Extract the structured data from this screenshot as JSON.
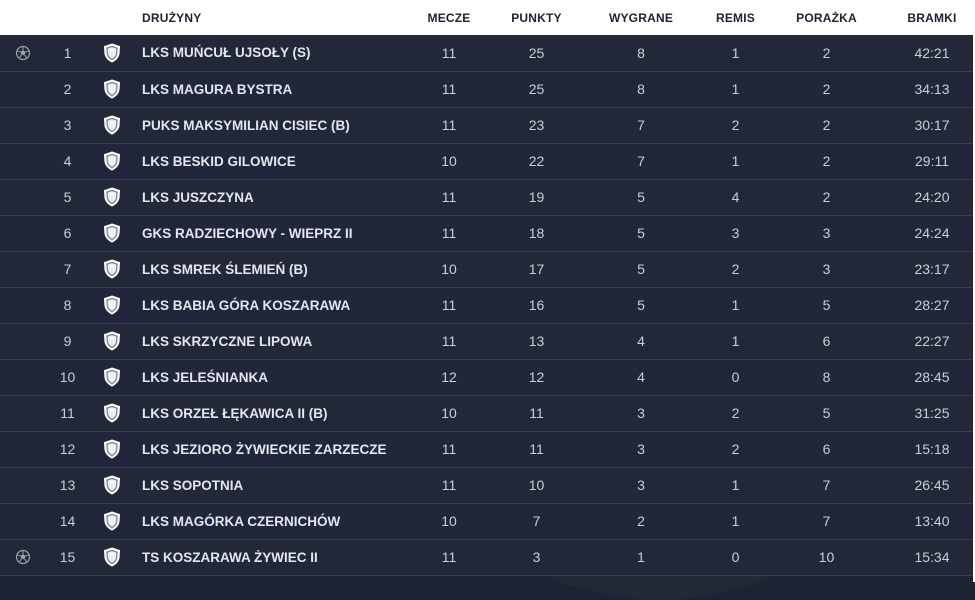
{
  "header": {
    "team": "Drużyny",
    "matches": "Mecze",
    "points": "Punkty",
    "wins": "Wygrane",
    "draws": "Remis",
    "losses": "Porażka",
    "goals": "Bramki"
  },
  "rows": [
    {
      "pos": "1",
      "ball": true,
      "team": "LKS MUŃCUŁ UJSOŁY (S)",
      "matches": "11",
      "points": "25",
      "wins": "8",
      "draws": "1",
      "losses": "2",
      "goals": "42:21"
    },
    {
      "pos": "2",
      "ball": false,
      "team": "LKS MAGURA BYSTRA",
      "matches": "11",
      "points": "25",
      "wins": "8",
      "draws": "1",
      "losses": "2",
      "goals": "34:13"
    },
    {
      "pos": "3",
      "ball": false,
      "team": "PUKS MAKSYMILIAN CISIEC (B)",
      "matches": "11",
      "points": "23",
      "wins": "7",
      "draws": "2",
      "losses": "2",
      "goals": "30:17"
    },
    {
      "pos": "4",
      "ball": false,
      "team": "LKS BESKID GILOWICE",
      "matches": "10",
      "points": "22",
      "wins": "7",
      "draws": "1",
      "losses": "2",
      "goals": "29:11"
    },
    {
      "pos": "5",
      "ball": false,
      "team": "LKS JUSZCZYNA",
      "matches": "11",
      "points": "19",
      "wins": "5",
      "draws": "4",
      "losses": "2",
      "goals": "24:20"
    },
    {
      "pos": "6",
      "ball": false,
      "team": "GKS RADZIECHOWY - WIEPRZ II",
      "matches": "11",
      "points": "18",
      "wins": "5",
      "draws": "3",
      "losses": "3",
      "goals": "24:24"
    },
    {
      "pos": "7",
      "ball": false,
      "team": "LKS SMREK ŚLEMIEŃ (B)",
      "matches": "10",
      "points": "17",
      "wins": "5",
      "draws": "2",
      "losses": "3",
      "goals": "23:17"
    },
    {
      "pos": "8",
      "ball": false,
      "team": "LKS BABIA GÓRA KOSZARAWA",
      "matches": "11",
      "points": "16",
      "wins": "5",
      "draws": "1",
      "losses": "5",
      "goals": "28:27"
    },
    {
      "pos": "9",
      "ball": false,
      "team": "LKS SKRZYCZNE LIPOWA",
      "matches": "11",
      "points": "13",
      "wins": "4",
      "draws": "1",
      "losses": "6",
      "goals": "22:27"
    },
    {
      "pos": "10",
      "ball": false,
      "team": "LKS JELEŚNIANKA",
      "matches": "12",
      "points": "12",
      "wins": "4",
      "draws": "0",
      "losses": "8",
      "goals": "28:45"
    },
    {
      "pos": "11",
      "ball": false,
      "team": "LKS ORZEŁ ŁĘKAWICA II (B)",
      "matches": "10",
      "points": "11",
      "wins": "3",
      "draws": "2",
      "losses": "5",
      "goals": "31:25"
    },
    {
      "pos": "12",
      "ball": false,
      "team": "LKS JEZIORO ŻYWIECKIE ZARZECZE",
      "matches": "11",
      "points": "11",
      "wins": "3",
      "draws": "2",
      "losses": "6",
      "goals": "15:18"
    },
    {
      "pos": "13",
      "ball": false,
      "team": "LKS SOPOTNIA",
      "matches": "11",
      "points": "10",
      "wins": "3",
      "draws": "1",
      "losses": "7",
      "goals": "26:45"
    },
    {
      "pos": "14",
      "ball": false,
      "team": "LKS MAGÓRKA CZERNICHÓW",
      "matches": "10",
      "points": "7",
      "wins": "2",
      "draws": "1",
      "losses": "7",
      "goals": "13:40"
    },
    {
      "pos": "15",
      "ball": true,
      "team": "TS KOSZARAWA ŻYWIEC II",
      "matches": "11",
      "points": "3",
      "wins": "1",
      "draws": "0",
      "losses": "10",
      "goals": "15:34"
    }
  ],
  "colors": {
    "background": "#1e2333",
    "header_bg": "#ffffff",
    "header_text": "#1d2130",
    "row_divider": "#3a4052"
  },
  "icons": {
    "crest": "team-crest-icon",
    "ball": "soccer-ball-icon"
  }
}
